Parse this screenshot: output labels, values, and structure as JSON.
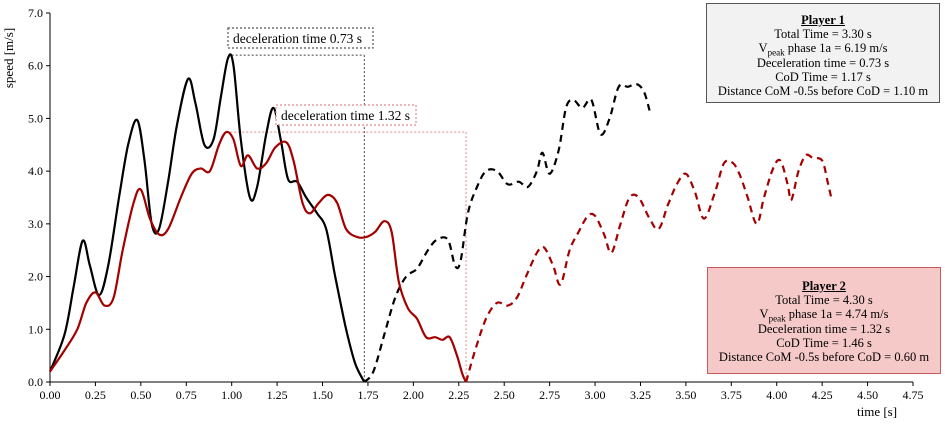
{
  "chart_data": {
    "type": "line",
    "xlabel": "time [s]",
    "ylabel": "speed [m/s]",
    "xlim": [
      0,
      4.75
    ],
    "ylim": [
      0,
      7
    ],
    "xticks": [
      "0.00",
      "0.25",
      "0.50",
      "0.75",
      "1.00",
      "1.25",
      "1.50",
      "1.75",
      "2.00",
      "2.25",
      "2.50",
      "2.75",
      "3.00",
      "3.25",
      "3.50",
      "3.75",
      "4.00",
      "4.25",
      "4.50",
      "4.75"
    ],
    "yticks": [
      "0.0",
      "1.0",
      "2.0",
      "3.0",
      "4.0",
      "5.0",
      "6.0",
      "7.0"
    ],
    "grid": false,
    "series": [
      {
        "player": "Player 1",
        "color": "#000000",
        "solid": [
          [
            0,
            0.2
          ],
          [
            0.08,
            0.9
          ],
          [
            0.13,
            1.8
          ],
          [
            0.18,
            2.68
          ],
          [
            0.22,
            2.2
          ],
          [
            0.27,
            1.65
          ],
          [
            0.32,
            2.2
          ],
          [
            0.38,
            3.5
          ],
          [
            0.43,
            4.5
          ],
          [
            0.48,
            4.97
          ],
          [
            0.52,
            4.2
          ],
          [
            0.56,
            3.0
          ],
          [
            0.6,
            2.9
          ],
          [
            0.65,
            3.8
          ],
          [
            0.7,
            4.9
          ],
          [
            0.76,
            5.75
          ],
          [
            0.8,
            5.3
          ],
          [
            0.85,
            4.5
          ],
          [
            0.9,
            4.6
          ],
          [
            0.94,
            5.4
          ],
          [
            0.98,
            6.15
          ],
          [
            1.01,
            6.0
          ],
          [
            1.05,
            4.6
          ],
          [
            1.1,
            3.5
          ],
          [
            1.14,
            3.7
          ],
          [
            1.19,
            4.7
          ],
          [
            1.23,
            5.2
          ],
          [
            1.27,
            4.6
          ],
          [
            1.31,
            3.85
          ],
          [
            1.36,
            3.8
          ],
          [
            1.41,
            3.5
          ],
          [
            1.47,
            3.2
          ],
          [
            1.52,
            2.9
          ],
          [
            1.57,
            2.0
          ],
          [
            1.63,
            1.0
          ],
          [
            1.68,
            0.35
          ],
          [
            1.73,
            0.0
          ]
        ],
        "dashed": [
          [
            1.73,
            0.0
          ],
          [
            1.78,
            0.2
          ],
          [
            1.84,
            0.9
          ],
          [
            1.9,
            1.6
          ],
          [
            1.96,
            2.0
          ],
          [
            2.02,
            2.15
          ],
          [
            2.08,
            2.5
          ],
          [
            2.13,
            2.7
          ],
          [
            2.19,
            2.7
          ],
          [
            2.23,
            2.2
          ],
          [
            2.26,
            2.3
          ],
          [
            2.3,
            3.2
          ],
          [
            2.35,
            3.7
          ],
          [
            2.4,
            4.0
          ],
          [
            2.46,
            4.0
          ],
          [
            2.52,
            3.75
          ],
          [
            2.58,
            3.8
          ],
          [
            2.63,
            3.7
          ],
          [
            2.68,
            4.0
          ],
          [
            2.71,
            4.35
          ],
          [
            2.75,
            3.95
          ],
          [
            2.8,
            4.4
          ],
          [
            2.84,
            5.2
          ],
          [
            2.88,
            5.35
          ],
          [
            2.93,
            5.2
          ],
          [
            2.98,
            5.35
          ],
          [
            3.03,
            4.7
          ],
          [
            3.08,
            5.0
          ],
          [
            3.13,
            5.6
          ],
          [
            3.18,
            5.6
          ],
          [
            3.23,
            5.65
          ],
          [
            3.27,
            5.5
          ],
          [
            3.3,
            5.15
          ]
        ]
      },
      {
        "player": "Player 2",
        "color": "#a40000",
        "solid": [
          [
            0,
            0.2
          ],
          [
            0.08,
            0.6
          ],
          [
            0.15,
            1.0
          ],
          [
            0.2,
            1.5
          ],
          [
            0.25,
            1.7
          ],
          [
            0.3,
            1.45
          ],
          [
            0.35,
            1.6
          ],
          [
            0.4,
            2.5
          ],
          [
            0.46,
            3.4
          ],
          [
            0.5,
            3.65
          ],
          [
            0.55,
            3.1
          ],
          [
            0.6,
            2.8
          ],
          [
            0.65,
            2.9
          ],
          [
            0.72,
            3.5
          ],
          [
            0.78,
            3.95
          ],
          [
            0.83,
            4.05
          ],
          [
            0.88,
            4.0
          ],
          [
            0.93,
            4.5
          ],
          [
            0.97,
            4.74
          ],
          [
            1.01,
            4.6
          ],
          [
            1.05,
            4.1
          ],
          [
            1.09,
            4.3
          ],
          [
            1.14,
            4.05
          ],
          [
            1.19,
            4.15
          ],
          [
            1.24,
            4.45
          ],
          [
            1.3,
            4.55
          ],
          [
            1.34,
            4.2
          ],
          [
            1.39,
            3.4
          ],
          [
            1.43,
            3.2
          ],
          [
            1.48,
            3.4
          ],
          [
            1.53,
            3.55
          ],
          [
            1.58,
            3.4
          ],
          [
            1.63,
            2.9
          ],
          [
            1.69,
            2.75
          ],
          [
            1.74,
            2.75
          ],
          [
            1.79,
            2.85
          ],
          [
            1.84,
            3.05
          ],
          [
            1.88,
            2.85
          ],
          [
            1.92,
            1.9
          ],
          [
            1.97,
            1.4
          ],
          [
            2.02,
            1.2
          ],
          [
            2.07,
            0.85
          ],
          [
            2.12,
            0.85
          ],
          [
            2.16,
            0.8
          ],
          [
            2.2,
            0.85
          ],
          [
            2.24,
            0.5
          ],
          [
            2.27,
            0.15
          ],
          [
            2.29,
            0.0
          ]
        ],
        "dashed": [
          [
            2.29,
            0.0
          ],
          [
            2.34,
            0.6
          ],
          [
            2.4,
            1.2
          ],
          [
            2.46,
            1.5
          ],
          [
            2.52,
            1.45
          ],
          [
            2.57,
            1.6
          ],
          [
            2.62,
            2.0
          ],
          [
            2.68,
            2.45
          ],
          [
            2.72,
            2.55
          ],
          [
            2.77,
            2.2
          ],
          [
            2.81,
            1.85
          ],
          [
            2.86,
            2.5
          ],
          [
            2.91,
            2.85
          ],
          [
            2.96,
            3.15
          ],
          [
            3.0,
            3.15
          ],
          [
            3.05,
            2.8
          ],
          [
            3.09,
            2.45
          ],
          [
            3.14,
            3.0
          ],
          [
            3.19,
            3.5
          ],
          [
            3.24,
            3.5
          ],
          [
            3.3,
            3.1
          ],
          [
            3.35,
            2.9
          ],
          [
            3.4,
            3.35
          ],
          [
            3.45,
            3.75
          ],
          [
            3.5,
            3.95
          ],
          [
            3.55,
            3.6
          ],
          [
            3.6,
            3.1
          ],
          [
            3.66,
            3.6
          ],
          [
            3.71,
            4.15
          ],
          [
            3.76,
            4.15
          ],
          [
            3.8,
            3.9
          ],
          [
            3.84,
            3.5
          ],
          [
            3.89,
            3.0
          ],
          [
            3.93,
            3.5
          ],
          [
            3.98,
            4.05
          ],
          [
            4.02,
            4.2
          ],
          [
            4.06,
            3.75
          ],
          [
            4.08,
            3.45
          ],
          [
            4.12,
            4.0
          ],
          [
            4.16,
            4.3
          ],
          [
            4.2,
            4.25
          ],
          [
            4.25,
            4.2
          ],
          [
            4.28,
            3.8
          ],
          [
            4.3,
            3.5
          ]
        ]
      }
    ],
    "annotations": [
      {
        "text": "deceleration time 0.73 s",
        "x_start": 1.0,
        "x_end": 1.73,
        "y": 6.2,
        "color": "#444444"
      },
      {
        "text": "deceleration time 1.32 s",
        "x_start": 0.97,
        "x_end": 2.29,
        "y": 4.74,
        "color": "#e08a8a"
      }
    ]
  },
  "player1": {
    "title": "Player 1",
    "total_time": "Total Time = 3.30 s",
    "vpeak_v": "V",
    "vpeak_sub": "peak",
    "vpeak_rest": " phase 1a = 6.19 m/s",
    "decel": "Deceleration time = 0.73 s",
    "cod": "CoD Time = 1.17 s",
    "dist": "Distance CoM -0.5s before CoD = 1.10 m"
  },
  "player2": {
    "title": "Player 2",
    "total_time": "Total Time = 4.30 s",
    "vpeak_v": "V",
    "vpeak_sub": "peak",
    "vpeak_rest": " phase 1a = 4.74 m/s",
    "decel": "Deceleration time = 1.32 s",
    "cod": "CoD Time = 1.46 s",
    "dist": "Distance CoM -0.5s before CoD = 0.60 m"
  }
}
